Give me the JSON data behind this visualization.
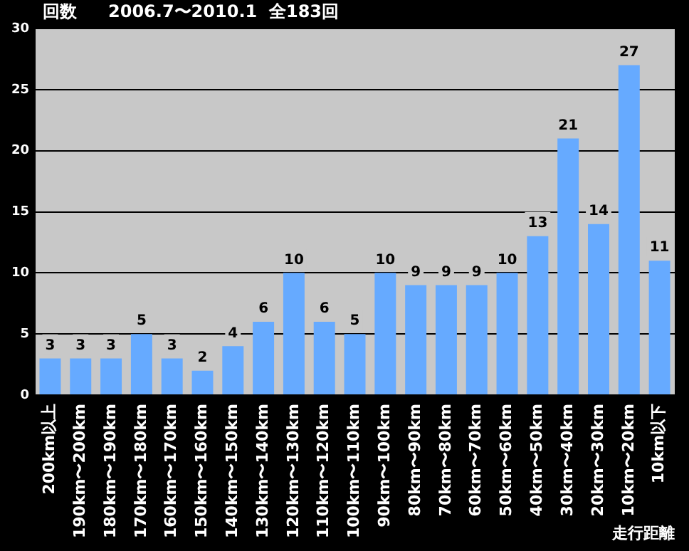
{
  "chart_data": {
    "type": "bar",
    "title": "2006.7〜2010.1  全183回",
    "ylabel": "回数",
    "xlabel": "走行距離",
    "categories": [
      "200km以上",
      "190km〜200km",
      "180km〜190km",
      "170km〜180km",
      "160km〜170km",
      "150km〜160km",
      "140km〜150km",
      "130km〜140km",
      "120km〜130km",
      "110km〜120km",
      "100km〜110km",
      "90km〜100km",
      "80km〜90km",
      "70km〜80km",
      "60km〜70km",
      "50km〜60km",
      "40km〜50km",
      "30km〜40km",
      "20km〜30km",
      "10km〜20km",
      "10km以下"
    ],
    "values": [
      3,
      3,
      3,
      5,
      3,
      2,
      4,
      6,
      10,
      6,
      5,
      10,
      9,
      9,
      9,
      10,
      13,
      21,
      14,
      27,
      11
    ],
    "color": "#66aaff",
    "ylim": [
      0,
      30
    ],
    "yticks": [
      0,
      5,
      10,
      15,
      20,
      25,
      30
    ],
    "grid": "y",
    "data_labels": true,
    "legend": false
  }
}
